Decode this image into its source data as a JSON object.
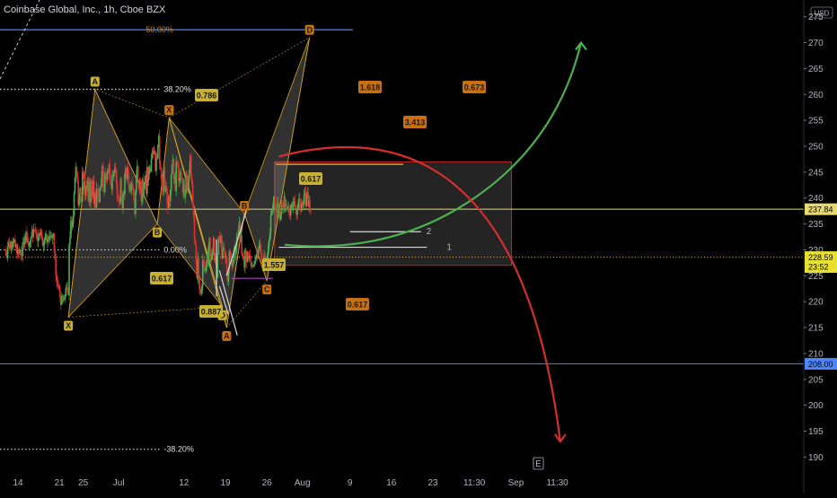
{
  "header": {
    "title": "Coinbase Global, Inc., 1h, Cboe BZX",
    "currency": "USD"
  },
  "colors": {
    "background": "#000000",
    "candle_up": "#4caf50",
    "candle_down": "#e03030",
    "pattern_fill": "#b0b0b0",
    "pattern_line": "#d4a017",
    "tag_gold": "#c8b030",
    "tag_orange": "#c87010",
    "hline_yellow": "#e8d870",
    "hline_blue": "#4f86f7",
    "zone_border": "#cc2222",
    "curve_green": "#4caf50",
    "curve_red": "#d32f2f",
    "last_price": "#e0c060",
    "current_price_bg": "#e8e030"
  },
  "chart_data": {
    "type": "candlestick",
    "title": "Coinbase Global, Inc., 1h, Cboe BZX",
    "y_axis": {
      "ticks": [
        190,
        195,
        200,
        205,
        210,
        215,
        220,
        225,
        230,
        235,
        240,
        245,
        250,
        255,
        260,
        265,
        270,
        275
      ],
      "ylim": [
        188.5,
        276.5
      ],
      "side": "right"
    },
    "x_axis": {
      "ticks": [
        "14",
        "21",
        "25",
        "Jul",
        "12",
        "19",
        "26",
        "Aug",
        "9",
        "16",
        "23",
        "11:30",
        "Sep",
        "11:30"
      ],
      "day_index": [
        0,
        7,
        11,
        17,
        28,
        35,
        42,
        48,
        56,
        63,
        70,
        77,
        84,
        91
      ]
    },
    "candle_windows": [
      {
        "from": -2,
        "to": 0.8,
        "base": 230.2,
        "amp": 2.8
      },
      {
        "from": 0.8,
        "to": 6,
        "base": 232.3,
        "amp": 3.4
      },
      {
        "from": 6,
        "to": 8.6,
        "base": 220.5,
        "amp": 4.5
      },
      {
        "from": 8.6,
        "to": 13.2,
        "base": 243.0,
        "amp": 12.0
      },
      {
        "from": 13.2,
        "to": 21.5,
        "base": 241.5,
        "amp": 10.0
      },
      {
        "from": 21.5,
        "to": 29.5,
        "base": 245.0,
        "amp": 11.0
      },
      {
        "from": 29.5,
        "to": 35.5,
        "base": 228.0,
        "amp": 10.0
      },
      {
        "from": 35.5,
        "to": 38.5,
        "base": 230.0,
        "amp": 7.5
      },
      {
        "from": 38.5,
        "to": 42.5,
        "base": 228.5,
        "amp": 5.5
      },
      {
        "from": 42.5,
        "to": 49.5,
        "base": 238.5,
        "amp": 5.5
      }
    ],
    "harmonic_patterns": [
      {
        "points": [
          {
            "label": "X",
            "date_index": 8.5,
            "price": 217.0
          },
          {
            "label": "A",
            "date_index": 13.0,
            "price": 261.0
          },
          {
            "label": "B",
            "date_index": 23.5,
            "price": 235.0
          },
          {
            "label": "C",
            "date_index": 25.5,
            "price": 255.5
          },
          {
            "label": "D",
            "date_index": 34.5,
            "price": 219.0
          }
        ],
        "ratios": [
          {
            "value": "0.786"
          },
          {
            "value": "0.617"
          },
          {
            "value": "1.557"
          },
          {
            "value": "0.887"
          }
        ]
      },
      {
        "points": [
          {
            "label": "X",
            "date_index": 25.5,
            "price": 255.5
          },
          {
            "label": "A",
            "date_index": 35.2,
            "price": 215.0
          },
          {
            "label": "B",
            "date_index": 38.2,
            "price": 237.0
          },
          {
            "label": "C",
            "date_index": 42.0,
            "price": 224.0
          },
          {
            "label": "D",
            "date_index": 49.2,
            "price": 271.0
          }
        ],
        "ratios": [
          {
            "value": "0.617"
          },
          {
            "value": "0.673"
          },
          {
            "value": "3.413"
          },
          {
            "value": "1.618"
          }
        ]
      }
    ],
    "fib_levels": [
      {
        "label": "50.00%",
        "price": 272.5
      },
      {
        "label": "38.20%",
        "price": 261.0
      },
      {
        "label": "0.00%",
        "price": 230.0
      },
      {
        "label": "-38.20%",
        "price": 191.5
      }
    ],
    "horizontal_lines": [
      {
        "price": 237.84,
        "label": "237.84",
        "color": "yellow"
      },
      {
        "price": 208.0,
        "label": "208.00",
        "color": "blue"
      }
    ],
    "zone": {
      "from_date_index": 43.0,
      "to_date_index": 86.0,
      "top": 247.0,
      "bottom": 227.0
    },
    "targets": [
      {
        "label": "1",
        "price": 230.5
      },
      {
        "label": "2",
        "price": 233.5
      }
    ],
    "current_price": {
      "value": "228.59",
      "countdown": "23:52"
    },
    "marker": "E"
  }
}
